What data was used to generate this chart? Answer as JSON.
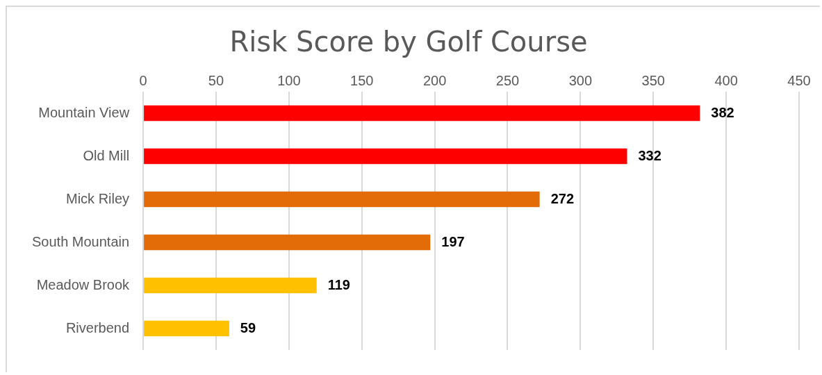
{
  "chart_data": {
    "type": "bar",
    "orientation": "horizontal",
    "title": "Risk Score by Golf Course",
    "categories": [
      "Mountain View",
      "Old Mill",
      "Mick Riley",
      "South Mountain",
      "Meadow Brook",
      "Riverbend"
    ],
    "values": [
      382,
      332,
      272,
      197,
      119,
      59
    ],
    "colors": [
      "#ff0000",
      "#ff0000",
      "#e36c09",
      "#e36c09",
      "#ffc000",
      "#ffc000"
    ],
    "xlim": [
      0,
      450
    ],
    "xticks": [
      0,
      50,
      100,
      150,
      200,
      250,
      300,
      350,
      400,
      450
    ],
    "grid": "x",
    "data_labels": true,
    "legend": false
  }
}
